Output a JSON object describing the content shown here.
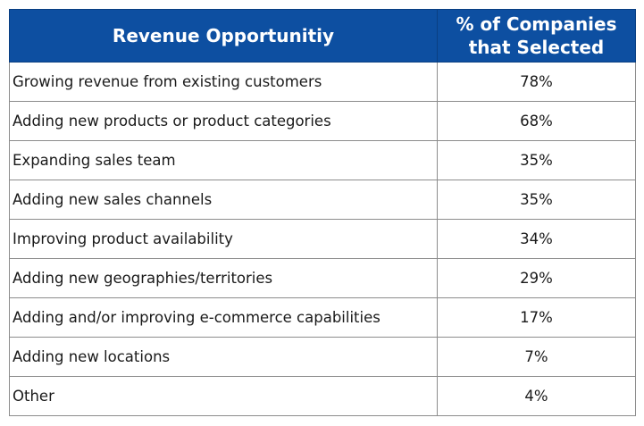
{
  "chart_data": {
    "type": "table",
    "columns": [
      "Revenue Opportunitiy",
      "% of Companies that Selected"
    ],
    "header_lines": [
      "% of Companies",
      "that Selected"
    ],
    "rows": [
      {
        "label": "Growing revenue from existing customers",
        "value": "78%"
      },
      {
        "label": "Adding new products or product categories",
        "value": "68%"
      },
      {
        "label": "Expanding sales team",
        "value": "35%"
      },
      {
        "label": "Adding new sales channels",
        "value": "35%"
      },
      {
        "label": "Improving product availability",
        "value": "34%"
      },
      {
        "label": "Adding new geographies/territories",
        "value": "29%"
      },
      {
        "label": "Adding and/or improving e-commerce capabilities",
        "value": "17%"
      },
      {
        "label": "Adding new locations",
        "value": "7%"
      },
      {
        "label": "Other",
        "value": "4%"
      }
    ],
    "colors": {
      "header_background": "#0d4fa1",
      "header_text": "#ffffff",
      "grid": "#8c8c8c"
    }
  }
}
